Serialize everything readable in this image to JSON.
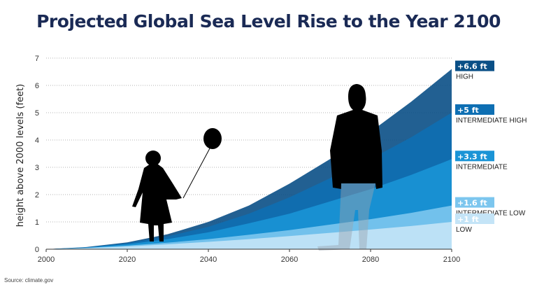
{
  "title": "Projected Global Sea Level Rise to the Year 2100",
  "source": "Source: climate.gov",
  "chart_data": {
    "type": "area",
    "title": "Projected Global Sea Level Rise to the Year 2100",
    "ylabel": "height above 2000 levels (feet)",
    "xlabel": "",
    "xlim": [
      2000,
      2100
    ],
    "ylim": [
      0,
      7
    ],
    "x_ticks": [
      2000,
      2020,
      2040,
      2060,
      2080,
      2100
    ],
    "y_ticks": [
      0,
      1,
      2,
      3,
      4,
      5,
      6,
      7
    ],
    "grid": "horizontal dotted",
    "x": [
      2000,
      2010,
      2020,
      2030,
      2040,
      2050,
      2060,
      2070,
      2080,
      2090,
      2100
    ],
    "series": [
      {
        "name": "HIGH",
        "label": "+6.6 ft",
        "end_value": 6.6,
        "color": "#0a4f86",
        "values": [
          0,
          0.08,
          0.25,
          0.55,
          1.0,
          1.6,
          2.4,
          3.3,
          4.3,
          5.4,
          6.6
        ]
      },
      {
        "name": "INTERMEDIATE HIGH",
        "label": "+5 ft",
        "end_value": 5.0,
        "color": "#0e6fb3",
        "values": [
          0,
          0.07,
          0.22,
          0.47,
          0.82,
          1.3,
          1.9,
          2.6,
          3.3,
          4.1,
          5.0
        ]
      },
      {
        "name": "INTERMEDIATE",
        "label": "+3.3 ft",
        "end_value": 3.3,
        "color": "#1a94d6",
        "values": [
          0,
          0.06,
          0.18,
          0.37,
          0.62,
          0.95,
          1.3,
          1.75,
          2.2,
          2.72,
          3.3
        ]
      },
      {
        "name": "INTERMEDIATE LOW",
        "label": "+1.6 ft",
        "end_value": 1.6,
        "color": "#7cc6ee",
        "values": [
          0,
          0.05,
          0.13,
          0.24,
          0.37,
          0.53,
          0.7,
          0.9,
          1.1,
          1.33,
          1.6
        ]
      },
      {
        "name": "LOW",
        "label": "+1 ft",
        "end_value": 1.0,
        "color": "#c4e4f7",
        "values": [
          0,
          0.04,
          0.1,
          0.18,
          0.27,
          0.37,
          0.48,
          0.6,
          0.72,
          0.85,
          1.0
        ]
      }
    ]
  }
}
